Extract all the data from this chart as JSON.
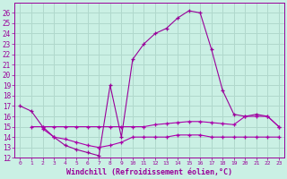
{
  "xlabel": "Windchill (Refroidissement éolien,°C)",
  "bg_color": "#caf0e4",
  "grid_color": "#b0d8cc",
  "line_color1": "#990099",
  "line_color2": "#aa00aa",
  "xlim": [
    -0.5,
    23.5
  ],
  "ylim": [
    12,
    27
  ],
  "yticks": [
    12,
    13,
    14,
    15,
    16,
    17,
    18,
    19,
    20,
    21,
    22,
    23,
    24,
    25,
    26
  ],
  "xticks": [
    0,
    1,
    2,
    3,
    4,
    5,
    6,
    7,
    8,
    9,
    10,
    11,
    12,
    13,
    14,
    15,
    16,
    17,
    18,
    19,
    20,
    21,
    22,
    23
  ],
  "series1_x": [
    0,
    1,
    2,
    3,
    4,
    5,
    6,
    7,
    8,
    9,
    10,
    11,
    12,
    13,
    14,
    15,
    16,
    17,
    18,
    19,
    20,
    21,
    22,
    23
  ],
  "series1_y": [
    17.0,
    16.5,
    15.0,
    14.0,
    13.2,
    12.8,
    12.5,
    12.2,
    19.0,
    14.0,
    21.5,
    23.0,
    24.0,
    24.5,
    25.5,
    26.2,
    26.0,
    22.5,
    18.5,
    16.2,
    16.0,
    16.2,
    16.0,
    15.0
  ],
  "series2_x": [
    1,
    2,
    3,
    4,
    5,
    6,
    7,
    8,
    9,
    10,
    11,
    12,
    13,
    14,
    15,
    16,
    17,
    18,
    19,
    20,
    21,
    22,
    23
  ],
  "series2_y": [
    15.0,
    15.0,
    15.0,
    15.0,
    15.0,
    15.0,
    15.0,
    15.0,
    15.0,
    15.0,
    15.0,
    15.2,
    15.3,
    15.4,
    15.5,
    15.5,
    15.4,
    15.3,
    15.2,
    16.0,
    16.0,
    16.0,
    15.0
  ],
  "series3_x": [
    2,
    3,
    4,
    5,
    6,
    7,
    8,
    9,
    10,
    11,
    12,
    13,
    14,
    15,
    16,
    17,
    18,
    19,
    20,
    21,
    22,
    23
  ],
  "series3_y": [
    14.8,
    14.0,
    13.8,
    13.5,
    13.2,
    13.0,
    13.2,
    13.5,
    14.0,
    14.0,
    14.0,
    14.0,
    14.2,
    14.2,
    14.2,
    14.0,
    14.0,
    14.0,
    14.0,
    14.0,
    14.0,
    14.0
  ]
}
